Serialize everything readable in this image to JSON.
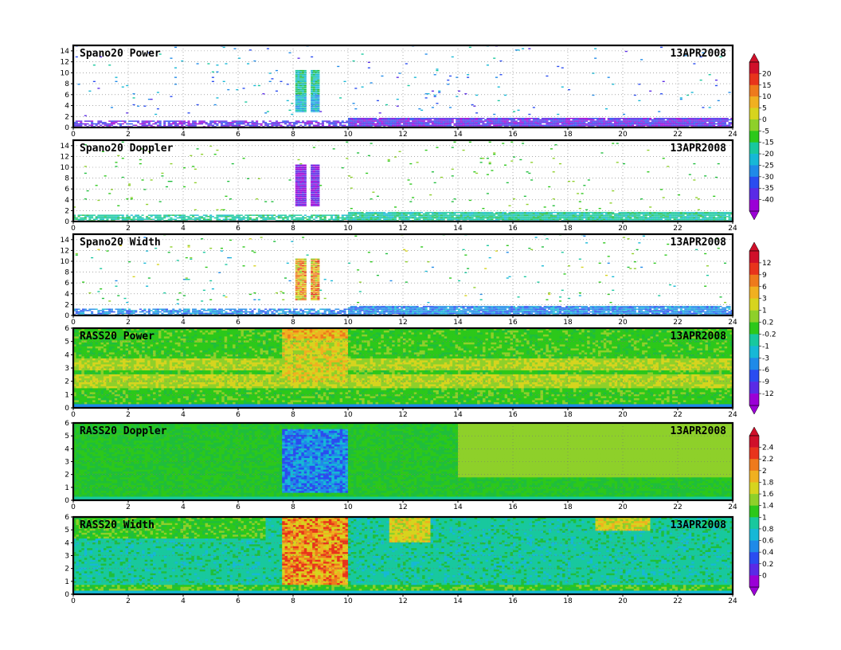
{
  "chart_data": {
    "type": "heatmap",
    "x_axis": {
      "range": [
        0,
        24
      ],
      "ticks": [
        "0",
        "2",
        "4",
        "6",
        "8",
        "10",
        "12",
        "14",
        "16",
        "18",
        "20",
        "22",
        "24"
      ]
    },
    "panels": [
      {
        "title": "Spano20  Power",
        "date": "13APR2008",
        "yrange": [
          0,
          15
        ],
        "yticks": [
          "0",
          "2",
          "4",
          "6",
          "8",
          "10",
          "12",
          "14"
        ],
        "colorbar": 0,
        "kind": "sparse",
        "field": "power"
      },
      {
        "title": "Spano20  Doppler",
        "date": "13APR2008",
        "yrange": [
          0,
          15
        ],
        "yticks": [
          "0",
          "2",
          "4",
          "6",
          "8",
          "10",
          "12",
          "14"
        ],
        "colorbar": 1,
        "kind": "sparse",
        "field": "doppler"
      },
      {
        "title": "Spano20  Width",
        "date": "13APR2008",
        "yrange": [
          0,
          15
        ],
        "yticks": [
          "0",
          "2",
          "4",
          "6",
          "8",
          "10",
          "12",
          "14"
        ],
        "colorbar": 1,
        "kind": "sparse",
        "field": "width"
      },
      {
        "title": "RASS20  Power",
        "date": "13APR2008",
        "yrange": [
          0,
          6
        ],
        "yticks": [
          "0",
          "1",
          "2",
          "3",
          "4",
          "5",
          "6"
        ],
        "colorbar": 1,
        "kind": "dense",
        "field": "rpower"
      },
      {
        "title": "RASS20  Doppler",
        "date": "13APR2008",
        "yrange": [
          0,
          6
        ],
        "yticks": [
          "0",
          "1",
          "2",
          "3",
          "4",
          "5",
          "6"
        ],
        "colorbar": 2,
        "kind": "dense",
        "field": "rdoppler"
      },
      {
        "title": "RASS20  Width",
        "date": "13APR2008",
        "yrange": [
          0,
          6
        ],
        "yticks": [
          "0",
          "1",
          "2",
          "3",
          "4",
          "5",
          "6"
        ],
        "colorbar": 2,
        "kind": "dense",
        "field": "rwidth"
      }
    ],
    "colorbars": [
      {
        "labels": [
          "20",
          "15",
          "10",
          "5",
          "0",
          "-5",
          "-15",
          "-20",
          "-25",
          "-30",
          "-35",
          "-40"
        ]
      },
      {
        "labels": [
          "12",
          "9",
          "6",
          "3",
          "1",
          "0.2",
          "-0.2",
          "-1",
          "-3",
          "-6",
          "-9",
          "-12"
        ]
      },
      {
        "labels": [
          "2.4",
          "2.2",
          "2",
          "1.8",
          "1.6",
          "1.4",
          "1",
          "0.8",
          "0.6",
          "0.4",
          "0.2",
          "0"
        ]
      }
    ],
    "palette": [
      "#9b00d6",
      "#5a2ae6",
      "#2a4cf0",
      "#1f8ae8",
      "#16b8d6",
      "#18c89e",
      "#1fbe3c",
      "#2cc81a",
      "#8ed02a",
      "#d6d41e",
      "#f0b020",
      "#ee7a1c",
      "#e8341c",
      "#d0102a"
    ]
  }
}
